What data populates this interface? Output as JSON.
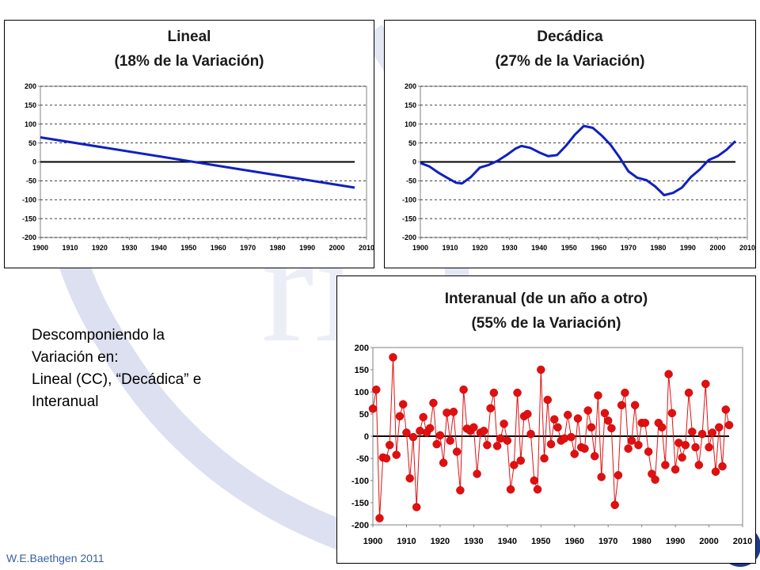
{
  "slide": {
    "caption_lines": [
      "Descomponiendo la",
      "Variación en:",
      "Lineal (CC), “Decádica” e",
      "Interanual"
    ],
    "author": "W.E.Baethgen 2011"
  },
  "chart_data": [
    {
      "type": "line",
      "title": [
        "Lineal",
        "(18% de la Variación)"
      ],
      "xlim": [
        1900,
        2010
      ],
      "ylim": [
        -200,
        200
      ],
      "xticks": [
        1900,
        1910,
        1920,
        1930,
        1940,
        1950,
        1960,
        1970,
        1980,
        1990,
        2000,
        2010
      ],
      "yticks": [
        200,
        150,
        100,
        50,
        0,
        -50,
        -100,
        -150,
        -200
      ],
      "grid": "horizontal dashed",
      "series": [
        {
          "color": "#1020c0",
          "x": [
            1900,
            2006
          ],
          "y": [
            65,
            -68
          ]
        }
      ]
    },
    {
      "type": "line",
      "title": [
        "Decádica",
        "(27% de la Variación)"
      ],
      "xlim": [
        1900,
        2010
      ],
      "ylim": [
        -200,
        200
      ],
      "xticks": [
        1900,
        1910,
        1920,
        1930,
        1940,
        1950,
        1960,
        1970,
        1980,
        1990,
        2000,
        2010
      ],
      "yticks": [
        200,
        150,
        100,
        50,
        0,
        -50,
        -100,
        -150,
        -200
      ],
      "grid": "horizontal dashed",
      "series": [
        {
          "color": "#1020c0",
          "x": [
            1900,
            1903,
            1906,
            1909,
            1912,
            1914,
            1917,
            1920,
            1923,
            1926,
            1929,
            1932,
            1934,
            1937,
            1940,
            1943,
            1946,
            1949,
            1952,
            1955,
            1958,
            1961,
            1964,
            1967,
            1970,
            1973,
            1976,
            1979,
            1982,
            1985,
            1988,
            1991,
            1994,
            1997,
            2000,
            2003,
            2006
          ],
          "y": [
            -3,
            -12,
            -28,
            -42,
            -55,
            -57,
            -40,
            -15,
            -8,
            3,
            18,
            35,
            42,
            37,
            25,
            15,
            18,
            43,
            72,
            95,
            90,
            70,
            45,
            12,
            -25,
            -42,
            -48,
            -65,
            -88,
            -82,
            -68,
            -40,
            -20,
            5,
            15,
            32,
            55
          ]
        }
      ]
    },
    {
      "type": "line",
      "title": [
        "Interanual (de un año a otro)",
        "(55% de la Variación)"
      ],
      "xlim": [
        1900,
        2010
      ],
      "ylim": [
        -200,
        200
      ],
      "xticks": [
        1900,
        1910,
        1920,
        1930,
        1940,
        1950,
        1960,
        1970,
        1980,
        1990,
        2000,
        2010
      ],
      "yticks": [
        200,
        150,
        100,
        50,
        0,
        -50,
        -100,
        -150,
        -200
      ],
      "grid": "none",
      "markers": true,
      "series": [
        {
          "color": "#e01010",
          "x": [
            1900,
            1901,
            1902,
            1903,
            1904,
            1905,
            1906,
            1907,
            1908,
            1909,
            1910,
            1911,
            1912,
            1913,
            1914,
            1915,
            1916,
            1917,
            1918,
            1919,
            1920,
            1921,
            1922,
            1923,
            1924,
            1925,
            1926,
            1927,
            1928,
            1929,
            1930,
            1931,
            1932,
            1933,
            1934,
            1935,
            1936,
            1937,
            1938,
            1939,
            1940,
            1941,
            1942,
            1943,
            1944,
            1945,
            1946,
            1947,
            1948,
            1949,
            1950,
            1951,
            1952,
            1953,
            1954,
            1955,
            1956,
            1957,
            1958,
            1959,
            1960,
            1961,
            1962,
            1963,
            1964,
            1965,
            1966,
            1967,
            1968,
            1969,
            1970,
            1971,
            1972,
            1973,
            1974,
            1975,
            1976,
            1977,
            1978,
            1979,
            1980,
            1981,
            1982,
            1983,
            1984,
            1985,
            1986,
            1987,
            1988,
            1989,
            1990,
            1991,
            1992,
            1993,
            1994,
            1995,
            1996,
            1997,
            1998,
            1999,
            2000,
            2001,
            2002,
            2003,
            2004,
            2005,
            2006
          ],
          "y": [
            62,
            105,
            -185,
            -48,
            -50,
            -20,
            178,
            -42,
            45,
            72,
            8,
            -95,
            -2,
            -160,
            12,
            43,
            8,
            18,
            75,
            -18,
            2,
            -60,
            53,
            -10,
            55,
            -35,
            -122,
            105,
            17,
            12,
            20,
            -85,
            8,
            12,
            -20,
            63,
            98,
            -22,
            -5,
            28,
            -10,
            -120,
            -65,
            98,
            -55,
            45,
            50,
            5,
            -100,
            -120,
            150,
            -50,
            82,
            -18,
            38,
            20,
            -10,
            -5,
            48,
            -2,
            -40,
            40,
            -25,
            -28,
            58,
            20,
            -45,
            92,
            -92,
            52,
            35,
            18,
            -155,
            -88,
            70,
            98,
            -28,
            -10,
            70,
            -20,
            30,
            30,
            -35,
            -85,
            -98,
            30,
            20,
            -65,
            140,
            52,
            -75,
            -15,
            -48,
            -20,
            98,
            10,
            -25,
            -65,
            5,
            118,
            -25,
            8,
            -80,
            20,
            -68,
            60,
            25
          ]
        }
      ]
    }
  ]
}
